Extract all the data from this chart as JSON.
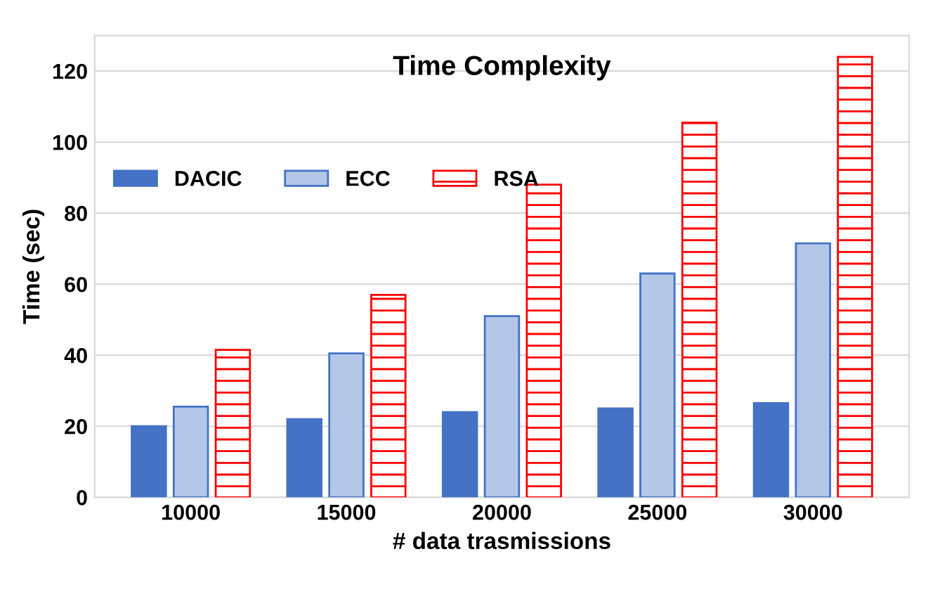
{
  "chart_data": {
    "type": "bar",
    "title": "Time Complexity",
    "xlabel": "# data trasmissions",
    "ylabel": "Time (sec)",
    "categories": [
      "10000",
      "15000",
      "20000",
      "25000",
      "30000"
    ],
    "series": [
      {
        "name": "DACIC",
        "color": "#4472c4",
        "values": [
          20,
          22,
          24,
          25,
          26.5
        ]
      },
      {
        "name": "ECC",
        "color": "#b4c7e7",
        "values": [
          25.5,
          40.5,
          51,
          63,
          71.5
        ]
      },
      {
        "name": "RSA",
        "color": "#ff0000",
        "values": [
          41.5,
          57,
          88,
          105.5,
          124
        ]
      }
    ],
    "ylim": [
      0,
      130
    ],
    "yticks": [
      0,
      20,
      40,
      60,
      80,
      100,
      120
    ],
    "grid": "y",
    "legend": "top left"
  }
}
